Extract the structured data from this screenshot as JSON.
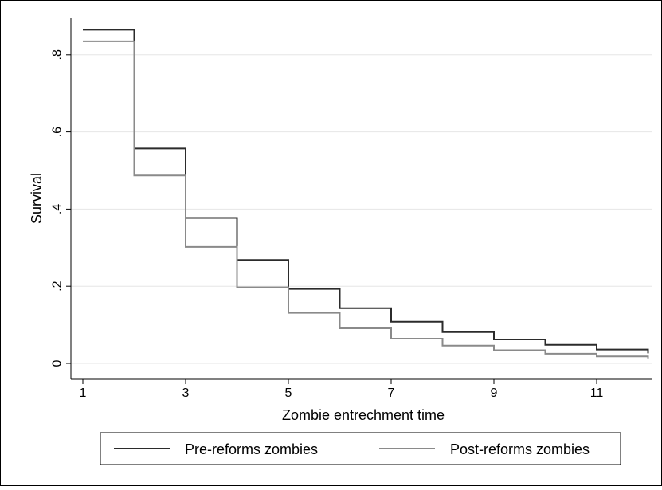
{
  "chart_data": {
    "type": "line",
    "step": true,
    "xlabel": "Zombie entrechment time",
    "ylabel": "Survival",
    "xlim": [
      1,
      12
    ],
    "ylim": [
      0,
      0.9
    ],
    "x_ticks": [
      1,
      3,
      5,
      7,
      9,
      11
    ],
    "y_ticks": [
      0,
      0.2,
      0.4,
      0.6,
      0.8
    ],
    "y_tick_labels": [
      "0",
      ".2",
      ".4",
      ".6",
      ".8"
    ],
    "grid": true,
    "legend_position": "bottom",
    "series": [
      {
        "name": "Pre-reforms zombies",
        "color": "#2b2b2b",
        "x": [
          1,
          2,
          3,
          4,
          5,
          6,
          7,
          8,
          9,
          10,
          11,
          12
        ],
        "values": [
          0.865,
          0.557,
          0.377,
          0.268,
          0.193,
          0.143,
          0.108,
          0.081,
          0.062,
          0.048,
          0.036,
          0.026
        ]
      },
      {
        "name": "Post-reforms zombies",
        "color": "#8a8a8a",
        "x": [
          1,
          2,
          3,
          4,
          5,
          6,
          7,
          8,
          9,
          10,
          11,
          12
        ],
        "values": [
          0.835,
          0.487,
          0.302,
          0.197,
          0.131,
          0.091,
          0.064,
          0.046,
          0.034,
          0.025,
          0.018,
          0.013
        ]
      }
    ]
  }
}
